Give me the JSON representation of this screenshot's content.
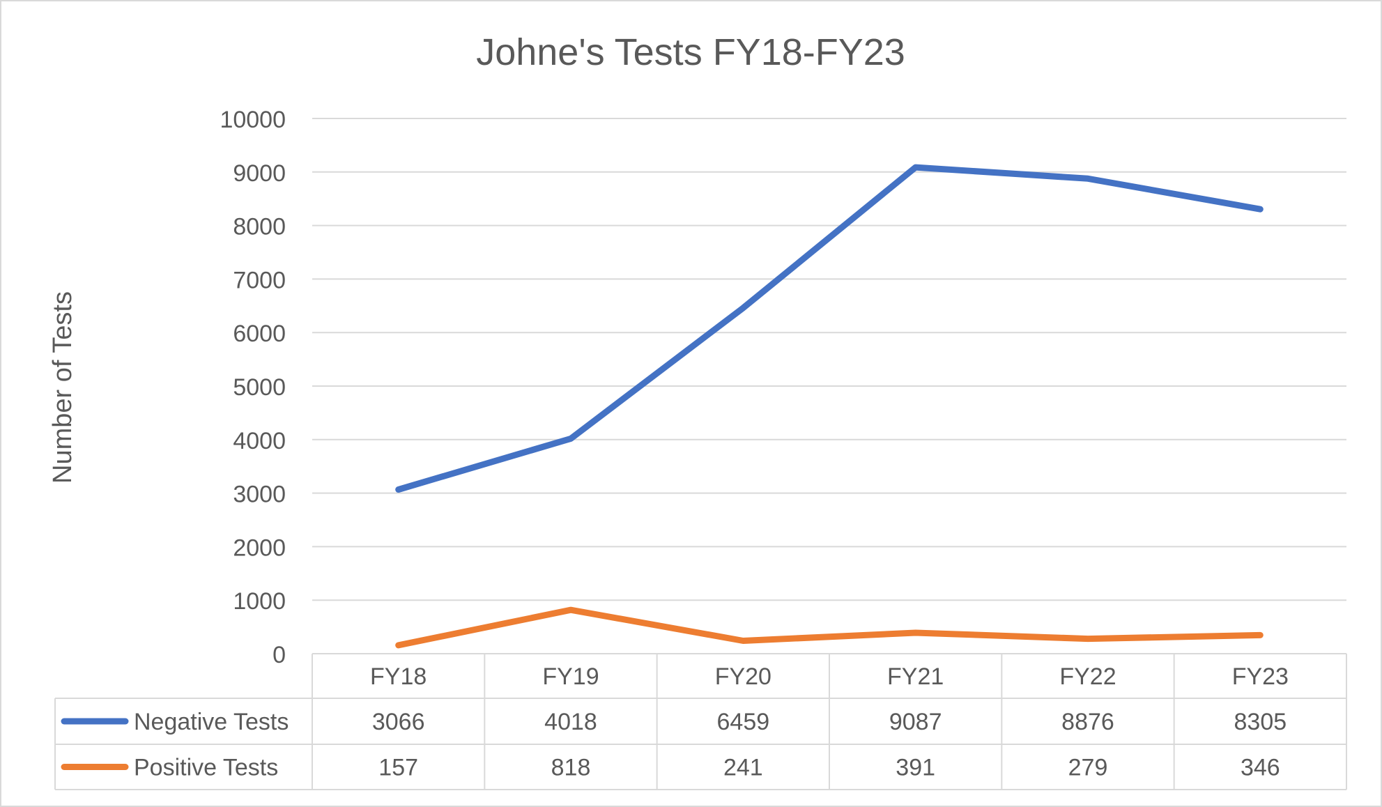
{
  "chart_data": {
    "type": "line",
    "title": "Johne's Tests FY18-FY23",
    "xlabel": "",
    "ylabel": "Number of Tests",
    "categories": [
      "FY18",
      "FY19",
      "FY20",
      "FY21",
      "FY22",
      "FY23"
    ],
    "ylim": [
      0,
      10000
    ],
    "yticks": [
      0,
      1000,
      2000,
      3000,
      4000,
      5000,
      6000,
      7000,
      8000,
      9000,
      10000
    ],
    "grid": true,
    "legend": "data-table",
    "series": [
      {
        "name": "Negative Tests",
        "color": "#4472C4",
        "values": [
          3066,
          4018,
          6459,
          9087,
          8876,
          8305
        ]
      },
      {
        "name": "Positive Tests",
        "color": "#ED7D31",
        "values": [
          157,
          818,
          241,
          391,
          279,
          346
        ]
      }
    ]
  }
}
